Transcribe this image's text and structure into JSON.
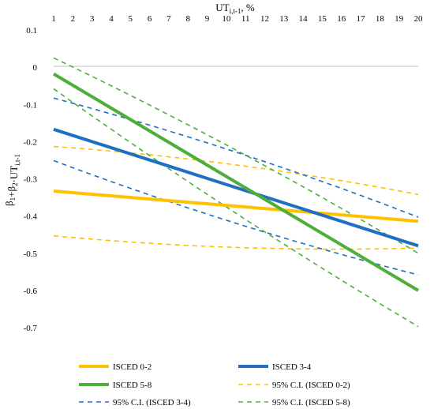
{
  "chart_data": {
    "type": "line",
    "title": "",
    "xlabel": {
      "base": "UT",
      "sub": "i,t-1",
      "suffix": ", %"
    },
    "ylabel": {
      "parts": [
        {
          "t": "β",
          "s": "1"
        },
        {
          "t": "+β",
          "s": "2"
        },
        {
          "t": "·UT",
          "s": "i,t-1"
        }
      ]
    },
    "xaxis_position": "top",
    "x": [
      1,
      2,
      3,
      4,
      5,
      6,
      7,
      8,
      9,
      10,
      11,
      12,
      13,
      14,
      15,
      16,
      17,
      18,
      19,
      20
    ],
    "xlim": [
      1,
      20
    ],
    "ylim": [
      -0.7,
      0.1
    ],
    "yticks": [
      0.1,
      0,
      -0.1,
      -0.2,
      -0.3,
      -0.4,
      -0.5,
      -0.6,
      -0.7
    ],
    "ytick_labels": [
      "0.1",
      "0",
      "-0.1",
      "-0.2",
      "-0.3",
      "-0.4",
      "-0.5",
      "-0.6",
      "-0.7"
    ],
    "grid": false,
    "legend_position": "bottom",
    "series": [
      {
        "name": "ISCED 0-2",
        "color": "#FFC000",
        "style": "solid",
        "width": 4,
        "endpoints": [
          -0.333,
          -0.414
        ]
      },
      {
        "name": "ISCED 3-4",
        "color": "#1F6FC4",
        "style": "solid",
        "width": 4,
        "endpoints": [
          -0.167,
          -0.48
        ]
      },
      {
        "name": "ISCED 5-8",
        "color": "#4DAF3A",
        "style": "solid",
        "width": 4,
        "endpoints": [
          -0.018,
          -0.6
        ]
      },
      {
        "name": "95% C.I. (ISCED 0-2)",
        "color": "#FFC000",
        "style": "dashed",
        "width": 1.6,
        "bands": [
          [
            -0.213,
            -0.342
          ],
          [
            -0.453,
            -0.486
          ]
        ]
      },
      {
        "name": "95% C.I. (ISCED 3-4)",
        "color": "#1F6FC4",
        "style": "dashed",
        "width": 1.6,
        "bands": [
          [
            -0.083,
            -0.403
          ],
          [
            -0.251,
            -0.558
          ]
        ]
      },
      {
        "name": "95% C.I. (ISCED 5-8)",
        "color": "#4DAF3A",
        "style": "dashed",
        "width": 1.6,
        "bands": [
          [
            0.025,
            -0.5
          ],
          [
            -0.058,
            -0.697
          ]
        ]
      }
    ]
  }
}
